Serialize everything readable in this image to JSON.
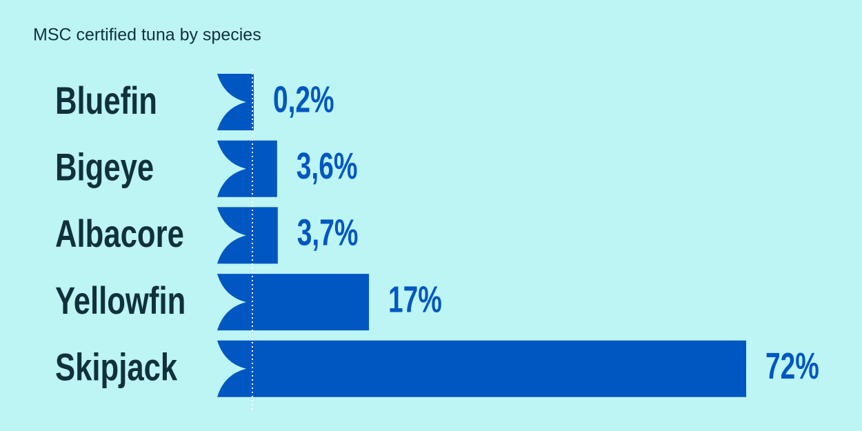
{
  "chart_data": {
    "type": "bar",
    "orientation": "horizontal",
    "title": "MSC certified tuna by species",
    "categories": [
      "Bluefin",
      "Bigeye",
      "Albacore",
      "Yellowfin",
      "Skipjack"
    ],
    "values": [
      0.2,
      3.6,
      3.7,
      17,
      72
    ],
    "value_labels": [
      "0,2%",
      "3,6%",
      "3,7%",
      "17%",
      "72%"
    ],
    "color": "#0057c2"
  }
}
